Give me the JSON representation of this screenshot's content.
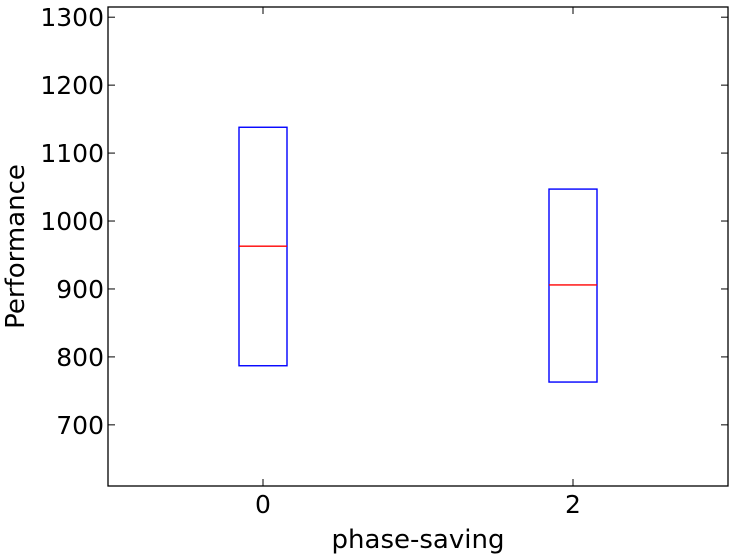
{
  "chart_data": {
    "type": "box",
    "title": "",
    "xlabel": "phase-saving",
    "ylabel": "Performance",
    "categories": [
      "0",
      "2"
    ],
    "category_values": [
      0,
      2
    ],
    "xlim": [
      -1,
      3
    ],
    "ylim": [
      610,
      1315
    ],
    "yticks": [
      700,
      800,
      900,
      1000,
      1100,
      1200,
      1300
    ],
    "boxes": [
      {
        "category": "0",
        "q1": 787,
        "median": 963,
        "q3": 1138
      },
      {
        "category": "2",
        "q1": 763,
        "median": 906,
        "q3": 1047
      }
    ],
    "colors": {
      "box": "#0000ff",
      "median": "#ff0000",
      "axes": "#000000"
    },
    "grid": false
  }
}
